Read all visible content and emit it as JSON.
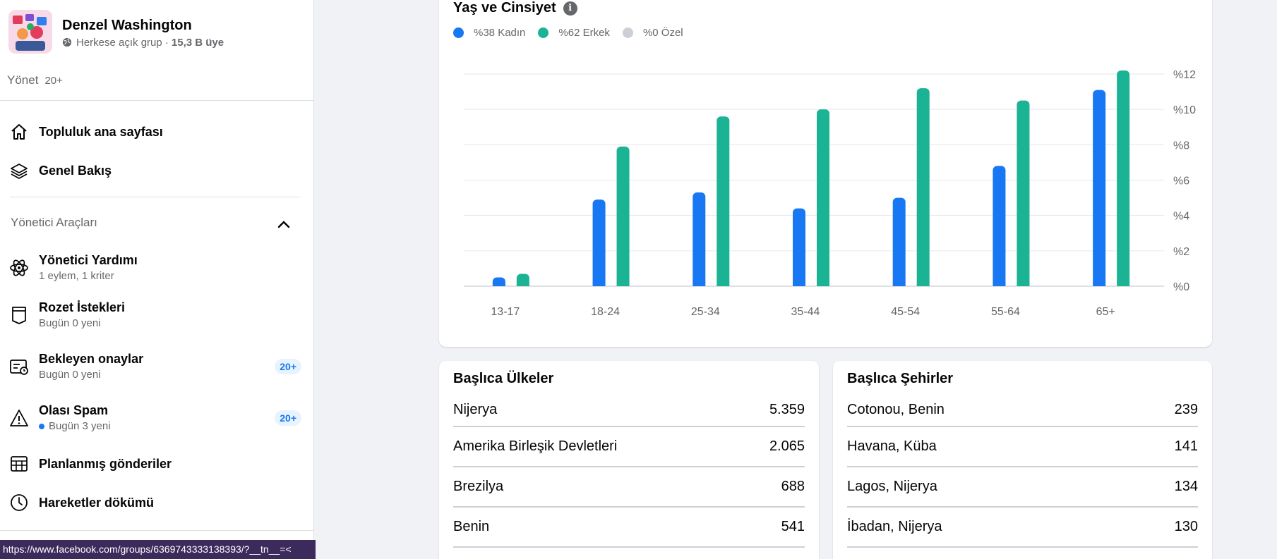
{
  "group": {
    "name": "Denzel Washington",
    "privacy": "Herkese açık grup ·",
    "members": "15,3 B üye"
  },
  "manage": {
    "label": "Yönet",
    "count": "20+"
  },
  "nav": {
    "community_home": "Topluluk ana sayfası",
    "overview": "Genel Bakış"
  },
  "admin_tools": {
    "title": "Yönetici Araçları",
    "items": [
      {
        "label": "Yönetici Yardımı",
        "sub": "1 eylem, 1 kriter",
        "icon": "atom-icon"
      },
      {
        "label": "Rozet İstekleri",
        "sub": "Bugün 0 yeni",
        "icon": "badge-icon"
      },
      {
        "label": "Bekleyen onaylar",
        "sub": "Bugün 0 yeni",
        "badge": "20+",
        "icon": "pending-icon"
      },
      {
        "label": "Olası Spam",
        "sub": "Bugün 3 yeni",
        "badge": "20+",
        "icon": "warning-icon"
      },
      {
        "label": "Planlanmış gönderiler",
        "icon": "calendar-icon"
      },
      {
        "label": "Hareketler dökümü",
        "icon": "clock-icon"
      }
    ]
  },
  "status_url": "https://www.facebook.com/groups/6369743333138393/?__tn__=<",
  "colors": {
    "female": "#1877f2",
    "male": "#1ab394",
    "custom": "#ccd0d5"
  },
  "chart_data": {
    "type": "bar",
    "title": "Yaş ve Cinsiyet",
    "legend": [
      {
        "label": "%38 Kadın",
        "color": "#1877f2"
      },
      {
        "label": "%62 Erkek",
        "color": "#1ab394"
      },
      {
        "label": "%0 Özel",
        "color": "#ccd0d5"
      }
    ],
    "categories": [
      "13-17",
      "18-24",
      "25-34",
      "35-44",
      "45-54",
      "55-64",
      "65+"
    ],
    "series": [
      {
        "name": "Kadın",
        "values": [
          0.5,
          4.9,
          5.3,
          4.4,
          5.0,
          6.8,
          11.1
        ]
      },
      {
        "name": "Erkek",
        "values": [
          0.7,
          7.9,
          9.6,
          10.0,
          11.2,
          10.5,
          12.2
        ]
      }
    ],
    "ylim": [
      0,
      12
    ],
    "yticks": [
      "%0",
      "%2",
      "%4",
      "%6",
      "%8",
      "%10",
      "%12"
    ],
    "grid": true
  },
  "countries": {
    "title": "Başlıca Ülkeler",
    "rows": [
      {
        "name": "Nijerya",
        "value": "5.359"
      },
      {
        "name": "Amerika Birleşik Devletleri",
        "value": "2.065"
      },
      {
        "name": "Brezilya",
        "value": "688"
      },
      {
        "name": "Benin",
        "value": "541"
      }
    ]
  },
  "cities": {
    "title": "Başlıca Şehirler",
    "rows": [
      {
        "name": "Cotonou, Benin",
        "value": "239"
      },
      {
        "name": "Havana, Küba",
        "value": "141"
      },
      {
        "name": "Lagos, Nijerya",
        "value": "134"
      },
      {
        "name": "İbadan, Nijerya",
        "value": "130"
      }
    ]
  }
}
